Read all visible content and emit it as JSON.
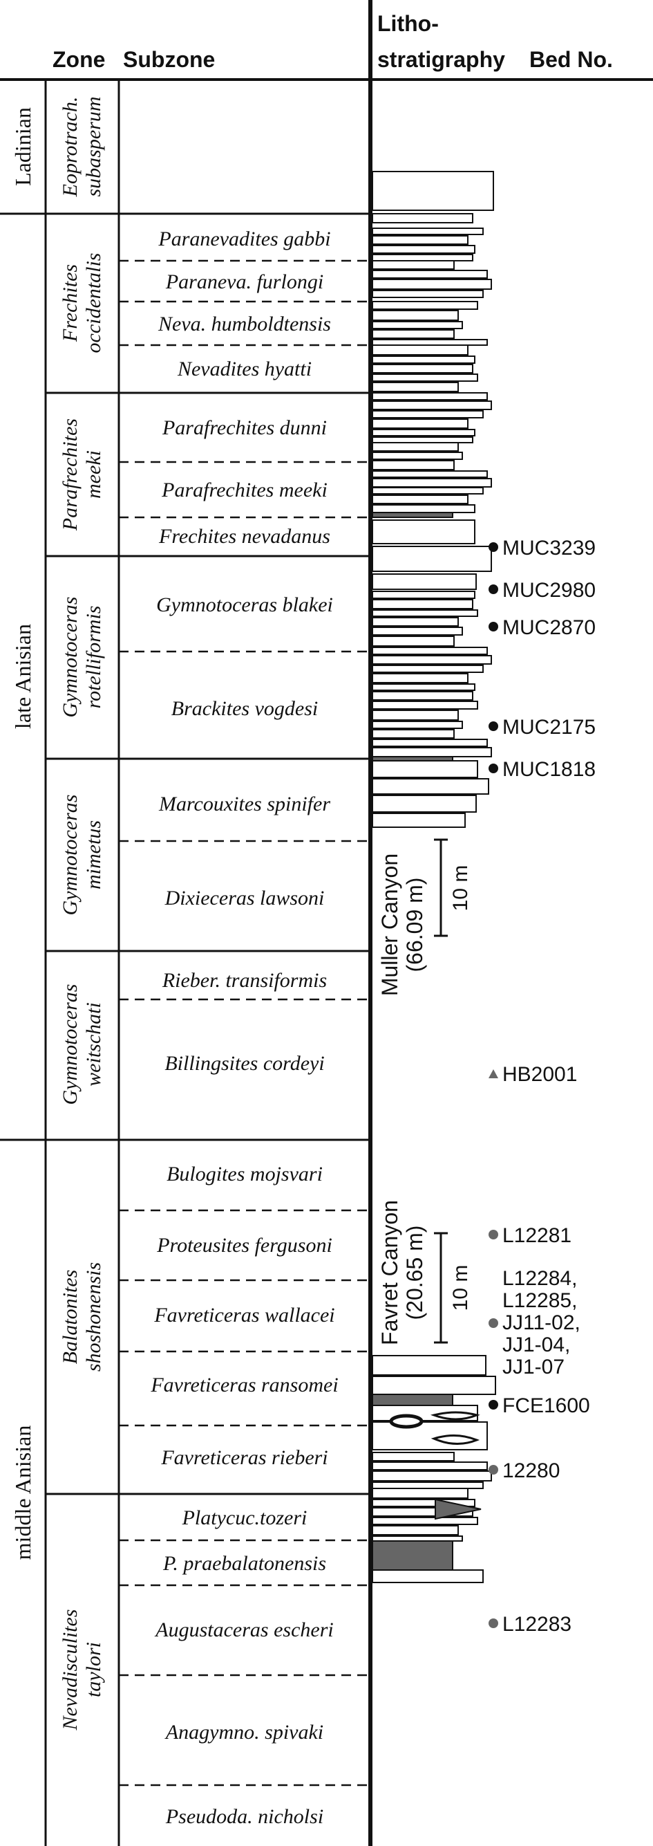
{
  "headers": {
    "zone": "Zone",
    "subzone": "Subzone",
    "litho_line1": "Litho-",
    "litho_line2": "stratigraphy",
    "bed_no": "Bed No."
  },
  "stages": [
    {
      "id": "ladinian",
      "label": "Ladinian"
    },
    {
      "id": "late-anisian",
      "label": "late Anisian"
    },
    {
      "id": "middle-anisian",
      "label": "middle Anisian"
    }
  ],
  "zones": [
    {
      "id": "eoprotrach",
      "line1": "Eoprotrach.",
      "line2": "subasperum"
    },
    {
      "id": "frechites",
      "line1": "Frechites",
      "line2": "occidentalis"
    },
    {
      "id": "parafrechites",
      "line1": "Parafrechites",
      "line2": "meeki"
    },
    {
      "id": "gymno-rotel",
      "line1": "Gymnotoceras",
      "line2": "rotelliformis"
    },
    {
      "id": "gymno-mimetus",
      "line1": "Gymnotoceras",
      "line2": "mimetus"
    },
    {
      "id": "gymno-weitschati",
      "line1": "Gymnotoceras",
      "line2": "weitschati"
    },
    {
      "id": "balatonites",
      "line1": "Balatonites",
      "line2": "shoshonensis"
    },
    {
      "id": "nevadisculites",
      "line1": "Nevadisculites",
      "line2": "taylori"
    }
  ],
  "subzones": [
    "Paranevadites gabbi",
    "Paraneva. furlongi",
    "Neva. humboldtensis",
    "Nevadites hyatti",
    "Parafrechites dunni",
    "Parafrechites meeki",
    "Frechites nevadanus",
    "Gymnotoceras blakei",
    "Brackites vogdesi",
    "Marcouxites spinifer",
    "Dixieceras lawsoni",
    "Rieber. transiformis",
    "Billingsites cordeyi",
    "Bulogites mojsvari",
    "Proteusites fergusoni",
    "Favreticeras wallacei",
    "Favreticeras ransomei",
    "Favreticeras rieberi",
    "Platycuc.tozeri",
    "P. praebalatonensis",
    "Augustaceras escheri",
    "Anagymno. spivaki",
    "Pseudoda. nicholsi"
  ],
  "sections": [
    {
      "id": "muller",
      "line1": "Muller Canyon",
      "line2": "(66.09 m)"
    },
    {
      "id": "favret",
      "line1": "Favret Canyon",
      "line2": "(20.65 m)"
    }
  ],
  "scale_bars": [
    {
      "id": "muller-scale",
      "label": "10 m"
    },
    {
      "id": "favret-scale",
      "label": "10 m"
    }
  ],
  "samples": [
    {
      "id": "muc3239",
      "label": "MUC3239",
      "marker": "circle",
      "color": "#111111"
    },
    {
      "id": "muc2980",
      "label": "MUC2980",
      "marker": "circle",
      "color": "#111111"
    },
    {
      "id": "muc2870",
      "label": "MUC2870",
      "marker": "circle",
      "color": "#111111"
    },
    {
      "id": "muc2175",
      "label": "MUC2175",
      "marker": "circle",
      "color": "#111111"
    },
    {
      "id": "muc1818",
      "label": "MUC1818",
      "marker": "circle",
      "color": "#111111"
    },
    {
      "id": "hb2001",
      "label": "HB2001",
      "marker": "triangle",
      "color": "#666666"
    },
    {
      "id": "l12281",
      "label": "L12281",
      "marker": "circle",
      "color": "#666666"
    },
    {
      "id": "group1",
      "labels": [
        "L12284,",
        "L12285,",
        "JJ11-02,",
        "JJ1-04,",
        "JJ1-07"
      ],
      "marker": "circle",
      "color": "#666666"
    },
    {
      "id": "fce1600",
      "label": "FCE1600",
      "marker": "circle",
      "color": "#111111"
    },
    {
      "id": "s12280",
      "label": "12280",
      "marker": "circle",
      "color": "#666666"
    },
    {
      "id": "l12283",
      "label": "L12283",
      "marker": "circle",
      "color": "#666666"
    }
  ],
  "colors": {
    "line": "#111111",
    "shale": "#666666",
    "bed_fill": "#ffffff",
    "dark_marker": "#111111",
    "grey_marker": "#666666"
  }
}
